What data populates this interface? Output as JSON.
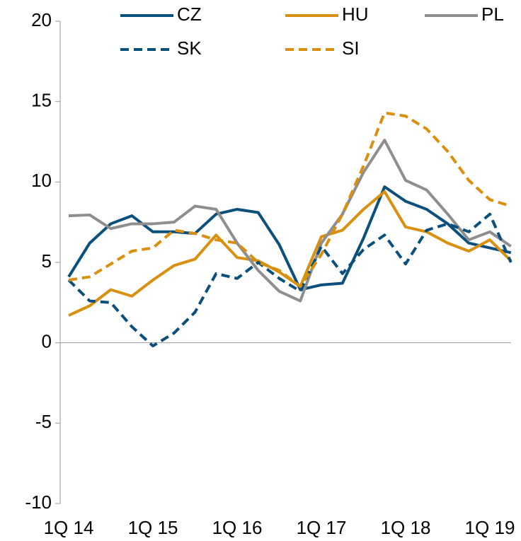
{
  "chart_data": {
    "type": "line",
    "categories": [
      "1Q 14",
      null,
      null,
      null,
      "1Q 15",
      null,
      null,
      null,
      "1Q 16",
      null,
      null,
      null,
      "1Q 17",
      null,
      null,
      null,
      "1Q 18",
      null,
      null,
      null,
      "1Q 19",
      null
    ],
    "series": [
      {
        "name": "CZ",
        "color": "#0b4f7c",
        "dash": false,
        "values": [
          4.1,
          6.2,
          7.4,
          7.9,
          6.9,
          6.9,
          6.8,
          8.0,
          8.3,
          8.1,
          6.1,
          3.3,
          3.6,
          3.7,
          6.5,
          9.7,
          8.8,
          8.3,
          7.4,
          6.2,
          5.9,
          5.6
        ]
      },
      {
        "name": "HU",
        "color": "#d9900f",
        "dash": false,
        "values": [
          1.7,
          2.3,
          3.3,
          2.9,
          3.9,
          4.8,
          5.2,
          6.7,
          5.3,
          5.1,
          4.4,
          3.5,
          6.6,
          7.0,
          8.3,
          9.4,
          7.2,
          6.9,
          6.2,
          5.7,
          6.4,
          5.1
        ]
      },
      {
        "name": "PL",
        "color": "#8e8e8e",
        "dash": false,
        "values": [
          7.9,
          7.95,
          7.1,
          7.4,
          7.4,
          7.5,
          8.5,
          8.3,
          6.2,
          4.5,
          3.2,
          2.6,
          6.2,
          8.0,
          10.6,
          12.6,
          10.1,
          9.5,
          8.0,
          6.4,
          6.9,
          6.0
        ]
      },
      {
        "name": "SK",
        "color": "#0b4f7c",
        "dash": true,
        "values": [
          3.9,
          2.6,
          2.5,
          1.0,
          -0.2,
          0.6,
          1.9,
          4.3,
          4.0,
          5.0,
          4.0,
          3.2,
          6.0,
          4.3,
          5.8,
          6.7,
          4.9,
          7.0,
          7.4,
          6.9,
          8.0,
          5.0
        ]
      },
      {
        "name": "SI",
        "color": "#d9900f",
        "dash": true,
        "values": [
          3.9,
          4.1,
          4.9,
          5.7,
          5.9,
          7.0,
          6.8,
          6.4,
          6.2,
          5.0,
          4.5,
          3.5,
          5.5,
          8.0,
          11.0,
          14.3,
          14.1,
          13.3,
          11.9,
          10.1,
          8.9,
          8.5
        ]
      }
    ],
    "ylim": [
      -10,
      20
    ],
    "yticks": [
      -10,
      -5,
      0,
      5,
      10,
      15,
      20
    ],
    "grid": false
  }
}
